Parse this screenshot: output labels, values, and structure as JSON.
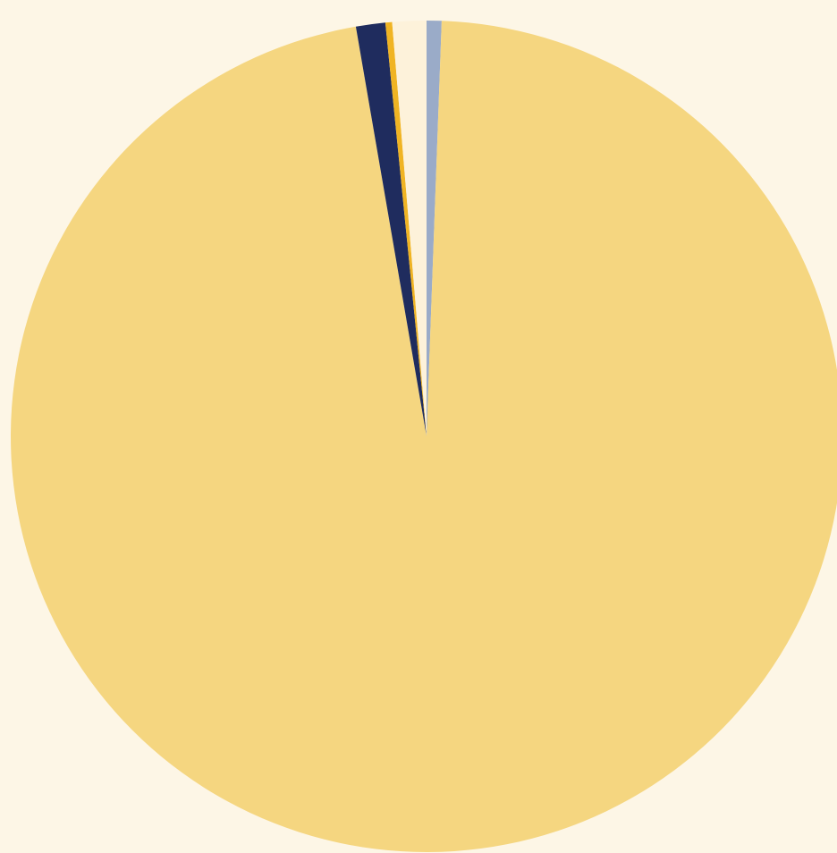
{
  "chart_data": {
    "type": "pie",
    "title": "",
    "start_angle_deg": 0,
    "direction": "clockwise",
    "slices": [
      {
        "value": 0.58,
        "color": "#9aabc8"
      },
      {
        "value": 96.7,
        "color": "#f5d680"
      },
      {
        "value": 1.14,
        "color": "#1f2c5e"
      },
      {
        "value": 0.26,
        "color": "#f0b423"
      },
      {
        "value": 1.32,
        "color": "#fdf2da"
      }
    ]
  },
  "colors": {
    "background": "#fdf6e6"
  }
}
